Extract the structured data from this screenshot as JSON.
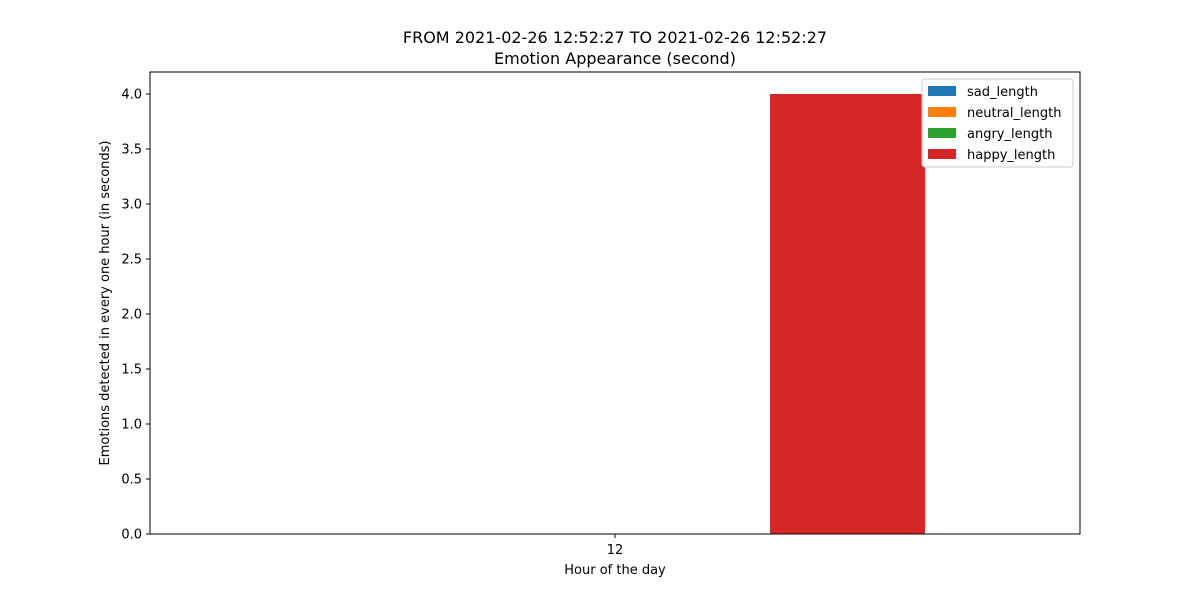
{
  "chart_data": {
    "type": "bar",
    "title_line1": "FROM 2021-02-26 12:52:27 TO 2021-02-26 12:52:27",
    "title_line2": "Emotion Appearance (second)",
    "xlabel": "Hour of the day",
    "ylabel": "Emotions detected in every one hour (in seconds)",
    "categories": [
      "12"
    ],
    "ylim": [
      0,
      4.2
    ],
    "yticks": [
      0.0,
      0.5,
      1.0,
      1.5,
      2.0,
      2.5,
      3.0,
      3.5,
      4.0
    ],
    "ytick_labels": [
      "0.0",
      "0.5",
      "1.0",
      "1.5",
      "2.0",
      "2.5",
      "3.0",
      "3.5",
      "4.0"
    ],
    "grid": false,
    "legend_position": "top-right",
    "series": [
      {
        "name": "sad_length",
        "color": "#1f77b4",
        "values": [
          0
        ]
      },
      {
        "name": "neutral_length",
        "color": "#ff7f0e",
        "values": [
          0
        ]
      },
      {
        "name": "angry_length",
        "color": "#2ca02c",
        "values": [
          0
        ]
      },
      {
        "name": "happy_length",
        "color": "#d62728",
        "values": [
          4.0
        ]
      }
    ]
  }
}
